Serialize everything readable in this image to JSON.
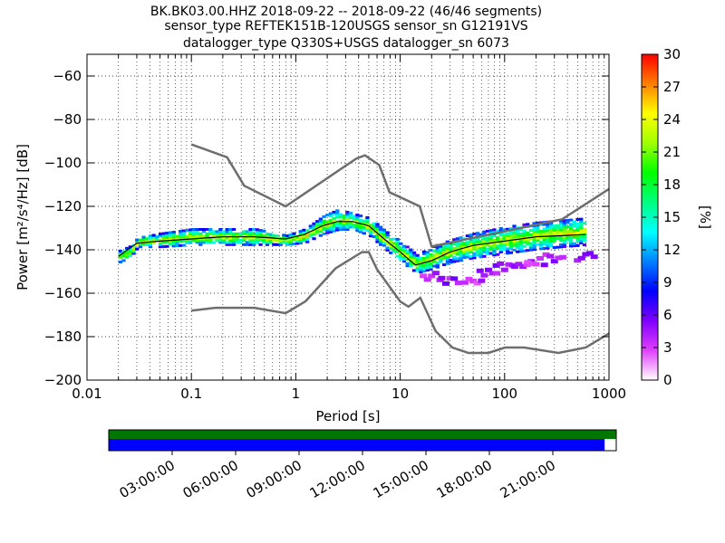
{
  "chart_data": {
    "type": "heatmap",
    "title_lines": [
      "BK.BK03.00.HHZ   2018-09-22 -- 2018-09-22  (46/46 segments)",
      "sensor_type REFTEK151B-120USGS sensor_sn G12191VS",
      "datalogger_type Q330S+USGS datalogger_sn 6073"
    ],
    "xlabel": "Period [s]",
    "ylabel": "Power [m²/s⁴/Hz] [dB]",
    "xscale": "log",
    "xlim": [
      0.01,
      1000
    ],
    "ylim": [
      -200,
      -50
    ],
    "x_ticks": [
      0.01,
      0.1,
      1,
      10,
      100,
      1000
    ],
    "x_tick_labels": [
      "0.01",
      "0.1",
      "1",
      "10",
      "100",
      "1000"
    ],
    "y_ticks": [
      -200,
      -180,
      -160,
      -140,
      -120,
      -100,
      -80,
      -60
    ],
    "y_tick_labels": [
      "−200",
      "−180",
      "−160",
      "−140",
      "−120",
      "−100",
      "−80",
      "−60"
    ],
    "grid": "dotted",
    "colorbar": {
      "label": "[%]",
      "range": [
        0,
        30
      ],
      "ticks": [
        0,
        3,
        6,
        9,
        12,
        15,
        18,
        21,
        24,
        27,
        30
      ],
      "colormap": [
        "#ffffff",
        "#e040ff",
        "#8000ff",
        "#0000ff",
        "#0080ff",
        "#00ffff",
        "#00ff80",
        "#00ff00",
        "#a0ff00",
        "#ffff00",
        "#ff8000",
        "#ff0000"
      ]
    },
    "noise_models": {
      "color": "#6e6e6e",
      "high": {
        "x": [
          0.1,
          0.22,
          0.32,
          0.8,
          3.8,
          4.6,
          6.3,
          7.9,
          15.4,
          20,
          354,
          1000
        ],
        "y": [
          -91.5,
          -97.4,
          -110.5,
          -120,
          -98,
          -96.5,
          -101,
          -113.5,
          -120,
          -138.5,
          -126,
          -112
        ]
      },
      "low": {
        "x": [
          0.1,
          0.17,
          0.4,
          0.8,
          1.24,
          2.4,
          4.3,
          5,
          6,
          10,
          12,
          15.6,
          21.9,
          31.6,
          45,
          70,
          101,
          154,
          328,
          600,
          1000
        ],
        "y": [
          -168,
          -166.7,
          -166.7,
          -169.2,
          -163.7,
          -148.6,
          -141.1,
          -141.1,
          -149,
          -163.8,
          -166.2,
          -162.1,
          -177.5,
          -185,
          -187.5,
          -187.5,
          -185,
          -185,
          -187.5,
          -185,
          -178.5
        ]
      }
    },
    "series": [
      {
        "name": "",
        "color": "#000000",
        "x": [
          0.02,
          0.03,
          0.05,
          0.1,
          0.2,
          0.4,
          0.8,
          1.2,
          1.8,
          2.5,
          3.5,
          5,
          7,
          10,
          14,
          20,
          30,
          50,
          100,
          200,
          600
        ],
        "y": [
          -143,
          -137,
          -136,
          -135,
          -134,
          -134,
          -135,
          -133,
          -129,
          -127,
          -127,
          -129,
          -135,
          -141,
          -147,
          -145,
          -141,
          -138,
          -136,
          -134,
          -133
        ]
      }
    ],
    "density_bands": [
      {
        "x": [
          0.02,
          0.025,
          0.03,
          0.05,
          0.1,
          0.2,
          0.4,
          0.8,
          1.2,
          1.8,
          2.5,
          3.5,
          5,
          7,
          10,
          14,
          20,
          30,
          50,
          100,
          200,
          600
        ],
        "y_high": [
          -140,
          -138,
          -134,
          -132,
          -130,
          -130,
          -130,
          -133,
          -130,
          -124,
          -121,
          -123,
          -125,
          -131,
          -136,
          -142,
          -138,
          -135,
          -132,
          -129,
          -127,
          -125
        ],
        "y_low": [
          -146,
          -144,
          -139,
          -139,
          -138,
          -138,
          -138,
          -138,
          -137,
          -133,
          -131,
          -131,
          -134,
          -140,
          -146,
          -151,
          -149,
          -146,
          -144,
          -142,
          -140,
          -138
        ]
      }
    ],
    "secondary_track": [
      {
        "x": 20,
        "y": -152
      },
      {
        "x": 30,
        "y": -155
      },
      {
        "x": 50,
        "y": -154
      },
      {
        "x": 70,
        "y": -150
      },
      {
        "x": 100,
        "y": -148
      },
      {
        "x": 150,
        "y": -146
      },
      {
        "x": 200,
        "y": -145
      },
      {
        "x": 300,
        "y": -144
      },
      {
        "x": 600,
        "y": -143
      }
    ],
    "timeline": {
      "labels": [
        "03:00:00",
        "06:00:00",
        "09:00:00",
        "12:00:00",
        "15:00:00",
        "18:00:00",
        "21:00:00"
      ],
      "range_hours": [
        0,
        24
      ],
      "top_bar_color": "#007700",
      "bottom_bar_color": "#0000ff",
      "bottom_bar_end_hours": 23.45
    }
  }
}
